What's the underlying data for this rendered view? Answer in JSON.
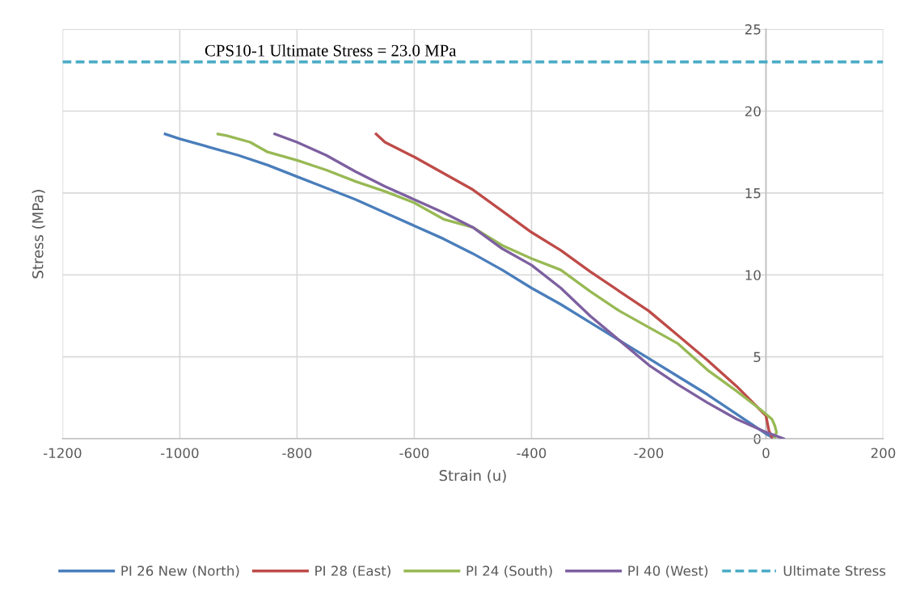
{
  "chart_data": {
    "type": "line",
    "xlabel": "Strain (u)",
    "ylabel": "Stress (MPa)",
    "annotations": [
      {
        "text": "CPS10-1 Ultimate Stress = 23.0 MPa",
        "x": -743,
        "y": 23
      }
    ],
    "xlim": [
      -1200,
      200
    ],
    "xticks": [
      -1200,
      -1000,
      -800,
      -600,
      -400,
      -200,
      0,
      200
    ],
    "ylim": [
      0,
      25
    ],
    "yticks": [
      0,
      5,
      10,
      15,
      20,
      25
    ],
    "grid": true,
    "legend": "bottom",
    "marker": "none",
    "series": [
      {
        "name": "PI 26 New (North)",
        "color": "#4a7ebb",
        "x": [
          -1025,
          -1000,
          -950,
          -900,
          -850,
          -800,
          -750,
          -700,
          -650,
          -600,
          -550,
          -500,
          -450,
          -400,
          -350,
          -300,
          -250,
          -200,
          -150,
          -100,
          -50,
          0,
          10
        ],
        "values": [
          18.6,
          18.3,
          17.8,
          17.3,
          16.7,
          16.0,
          15.3,
          14.6,
          13.8,
          13.0,
          12.2,
          11.3,
          10.3,
          9.2,
          8.2,
          7.1,
          6.0,
          4.9,
          3.8,
          2.7,
          1.5,
          0.3,
          0.1
        ]
      },
      {
        "name": "PI 28 (East)",
        "color": "#be4b48",
        "x": [
          -665,
          -650,
          -600,
          -550,
          -500,
          -450,
          -400,
          -350,
          -300,
          -250,
          -200,
          -150,
          -100,
          -50,
          0,
          5,
          10
        ],
        "values": [
          18.6,
          18.1,
          17.2,
          16.2,
          15.2,
          13.9,
          12.6,
          11.5,
          10.2,
          9.0,
          7.8,
          6.3,
          4.8,
          3.2,
          1.4,
          0.5,
          0.1
        ]
      },
      {
        "name": "PI 24 (South)",
        "color": "#98b954",
        "x": [
          -935,
          -920,
          -880,
          -850,
          -800,
          -750,
          -700,
          -650,
          -600,
          -550,
          -500,
          -450,
          -400,
          -350,
          -300,
          -250,
          -200,
          -150,
          -100,
          -50,
          -10,
          10,
          15,
          18,
          15
        ],
        "values": [
          18.6,
          18.5,
          18.1,
          17.5,
          17.0,
          16.4,
          15.7,
          15.1,
          14.4,
          13.4,
          12.9,
          11.8,
          11.0,
          10.3,
          9.0,
          7.8,
          6.8,
          5.8,
          4.2,
          2.9,
          1.8,
          1.2,
          0.8,
          0.4,
          0.1
        ]
      },
      {
        "name": "PI 40 (West)",
        "color": "#7d60a0",
        "x": [
          -838,
          -800,
          -750,
          -700,
          -650,
          -600,
          -550,
          -500,
          -450,
          -400,
          -350,
          -300,
          -250,
          -200,
          -150,
          -100,
          -50,
          0,
          30
        ],
        "values": [
          18.6,
          18.1,
          17.3,
          16.3,
          15.4,
          14.6,
          13.8,
          12.9,
          11.6,
          10.6,
          9.2,
          7.5,
          6.0,
          4.5,
          3.3,
          2.2,
          1.2,
          0.4,
          0.0
        ]
      },
      {
        "name": "Ultimate Stress",
        "color": "#4bacc6",
        "line_style": "dashed",
        "x": [
          -1200,
          200
        ],
        "values": [
          23.0,
          23.0
        ]
      }
    ]
  }
}
